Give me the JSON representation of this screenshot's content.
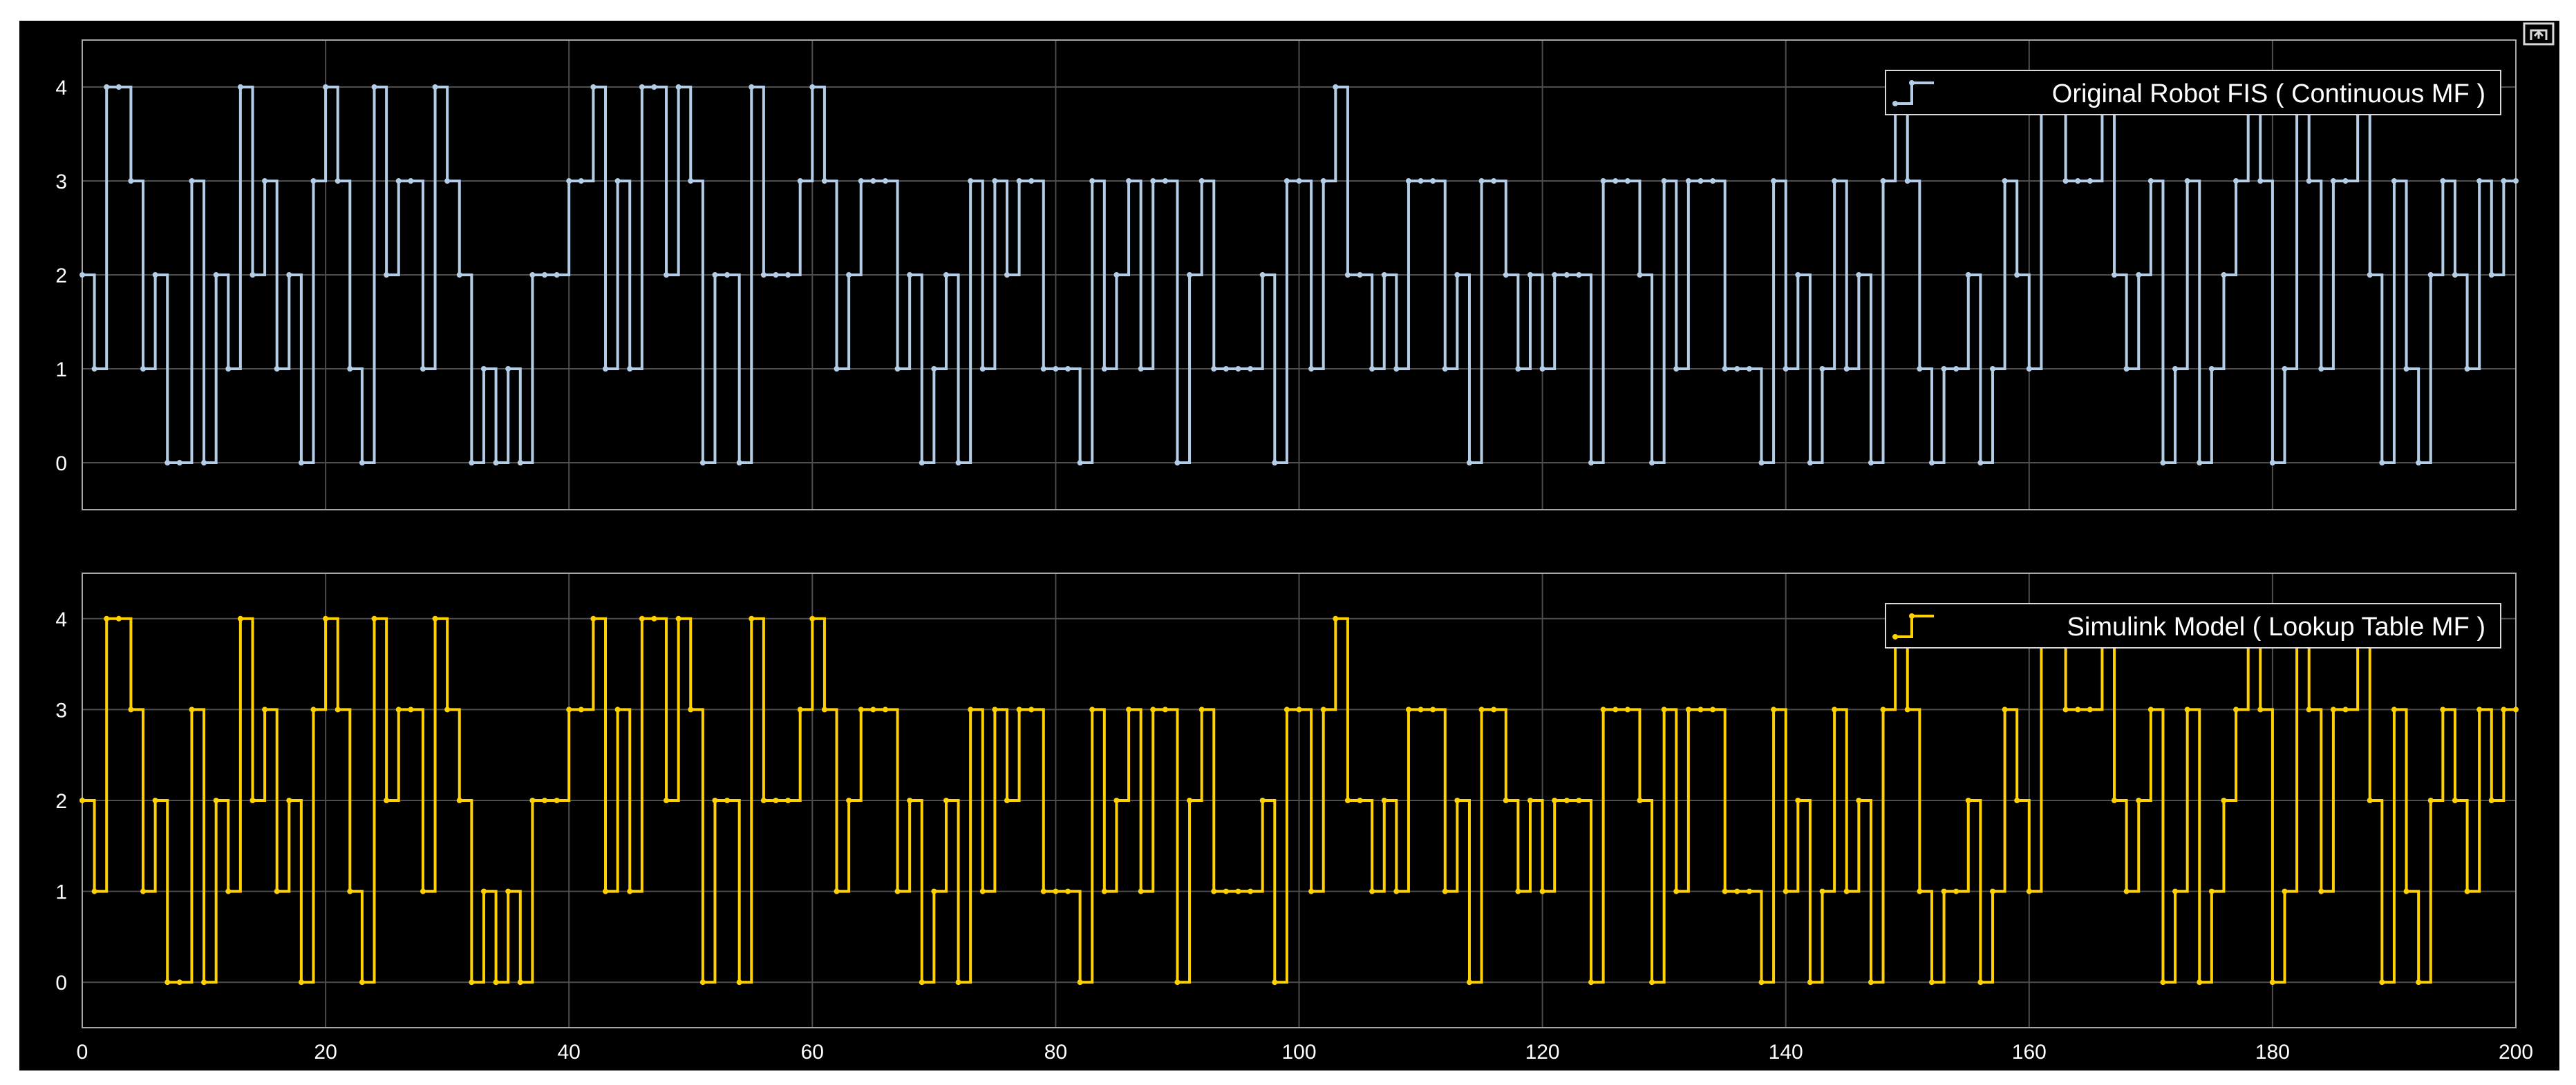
{
  "scope_window": {
    "background": "#000000",
    "axes_border": "#a6a6a6",
    "grid_color": "#4d4d4d",
    "undock_icon": "undock-icon"
  },
  "chart_data": [
    {
      "type": "line",
      "style": "stairs",
      "title": "",
      "xlabel": "",
      "ylabel": "",
      "xlim": [
        0,
        200
      ],
      "ylim": [
        -0.5,
        4.5
      ],
      "grid": true,
      "show_x_ticklabels": false,
      "x_ticks": [
        0,
        20,
        40,
        60,
        80,
        100,
        120,
        140,
        160,
        180,
        200
      ],
      "y_ticks": [
        0,
        1,
        2,
        3,
        4
      ],
      "y_ticklabels": [
        "0",
        "1",
        "2",
        "3",
        "4"
      ],
      "legend_position": "top-right",
      "series": [
        {
          "name": "Original Robot FIS ( Continuous MF )",
          "color": "#b4cde6",
          "x": [
            0,
            1,
            2,
            3,
            4,
            5,
            6,
            7,
            8,
            9,
            10,
            11,
            12,
            13,
            14,
            15,
            16,
            17,
            18,
            19,
            20,
            21,
            22,
            23,
            24,
            25,
            26,
            27,
            28,
            29,
            30,
            31,
            32,
            33,
            34,
            35,
            36,
            37,
            38,
            39,
            40,
            41,
            42,
            43,
            44,
            45,
            46,
            47,
            48,
            49,
            50,
            51,
            52,
            53,
            54,
            55,
            56,
            57,
            58,
            59,
            60,
            61,
            62,
            63,
            64,
            65,
            66,
            67,
            68,
            69,
            70,
            71,
            72,
            73,
            74,
            75,
            76,
            77,
            78,
            79,
            80,
            81,
            82,
            83,
            84,
            85,
            86,
            87,
            88,
            89,
            90,
            91,
            92,
            93,
            94,
            95,
            96,
            97,
            98,
            99,
            100,
            101,
            102,
            103,
            104,
            105,
            106,
            107,
            108,
            109,
            110,
            111,
            112,
            113,
            114,
            115,
            116,
            117,
            118,
            119,
            120,
            121,
            122,
            123,
            124,
            125,
            126,
            127,
            128,
            129,
            130,
            131,
            132,
            133,
            134,
            135,
            136,
            137,
            138,
            139,
            140,
            141,
            142,
            143,
            144,
            145,
            146,
            147,
            148,
            149,
            150,
            151,
            152,
            153,
            154,
            155,
            156,
            157,
            158,
            159,
            160,
            161,
            162,
            163,
            164,
            165,
            166,
            167,
            168,
            169,
            170,
            171,
            172,
            173,
            174,
            175,
            176,
            177,
            178,
            179,
            180,
            181,
            182,
            183,
            184,
            185,
            186,
            187,
            188,
            189,
            190,
            191,
            192,
            193,
            194,
            195,
            196,
            197,
            198,
            199,
            200
          ],
          "y": [
            2,
            1,
            4,
            4,
            3,
            1,
            2,
            0,
            0,
            3,
            0,
            2,
            1,
            4,
            2,
            3,
            1,
            2,
            0,
            3,
            4,
            3,
            1,
            0,
            4,
            2,
            3,
            3,
            1,
            4,
            3,
            2,
            0,
            1,
            0,
            1,
            0,
            2,
            2,
            2,
            3,
            3,
            4,
            1,
            3,
            1,
            4,
            4,
            2,
            4,
            3,
            0,
            2,
            2,
            0,
            4,
            2,
            2,
            2,
            3,
            4,
            3,
            1,
            2,
            3,
            3,
            3,
            1,
            2,
            0,
            1,
            2,
            0,
            3,
            1,
            3,
            2,
            3,
            3,
            1,
            1,
            1,
            0,
            3,
            1,
            2,
            3,
            1,
            3,
            3,
            0,
            2,
            3,
            1,
            1,
            1,
            1,
            2,
            0,
            3,
            3,
            1,
            3,
            4,
            2,
            2,
            1,
            2,
            1,
            3,
            3,
            3,
            1,
            2,
            0,
            3,
            3,
            2,
            1,
            2,
            1,
            2,
            2,
            2,
            0,
            3,
            3,
            3,
            2,
            0,
            3,
            1,
            3,
            3,
            3,
            1,
            1,
            1,
            0,
            3,
            1,
            2,
            0,
            1,
            3,
            1,
            2,
            0,
            3,
            4,
            3,
            1,
            0,
            1,
            1,
            2,
            0,
            1,
            3,
            2,
            1,
            4,
            4,
            3,
            3,
            3,
            4,
            2,
            1,
            2,
            3,
            0,
            1,
            3,
            0,
            1,
            2,
            3,
            4,
            3,
            0,
            1,
            4,
            3,
            1,
            3,
            3,
            4,
            2,
            0,
            3,
            1,
            0,
            2,
            3,
            2,
            1,
            3,
            2,
            3,
            3
          ],
          "markers": true
        }
      ]
    },
    {
      "type": "line",
      "style": "stairs",
      "title": "",
      "xlabel": "",
      "ylabel": "",
      "xlim": [
        0,
        200
      ],
      "ylim": [
        -0.5,
        4.5
      ],
      "grid": true,
      "show_x_ticklabels": true,
      "x_ticks": [
        0,
        20,
        40,
        60,
        80,
        100,
        120,
        140,
        160,
        180,
        200
      ],
      "x_ticklabels": [
        "0",
        "20",
        "40",
        "60",
        "80",
        "100",
        "120",
        "140",
        "160",
        "180",
        "200"
      ],
      "y_ticks": [
        0,
        1,
        2,
        3,
        4
      ],
      "y_ticklabels": [
        "0",
        "1",
        "2",
        "3",
        "4"
      ],
      "legend_position": "top-right",
      "series": [
        {
          "name": "Simulink Model ( Lookup Table MF )",
          "color": "#ffd100",
          "x": [
            0,
            1,
            2,
            3,
            4,
            5,
            6,
            7,
            8,
            9,
            10,
            11,
            12,
            13,
            14,
            15,
            16,
            17,
            18,
            19,
            20,
            21,
            22,
            23,
            24,
            25,
            26,
            27,
            28,
            29,
            30,
            31,
            32,
            33,
            34,
            35,
            36,
            37,
            38,
            39,
            40,
            41,
            42,
            43,
            44,
            45,
            46,
            47,
            48,
            49,
            50,
            51,
            52,
            53,
            54,
            55,
            56,
            57,
            58,
            59,
            60,
            61,
            62,
            63,
            64,
            65,
            66,
            67,
            68,
            69,
            70,
            71,
            72,
            73,
            74,
            75,
            76,
            77,
            78,
            79,
            80,
            81,
            82,
            83,
            84,
            85,
            86,
            87,
            88,
            89,
            90,
            91,
            92,
            93,
            94,
            95,
            96,
            97,
            98,
            99,
            100,
            101,
            102,
            103,
            104,
            105,
            106,
            107,
            108,
            109,
            110,
            111,
            112,
            113,
            114,
            115,
            116,
            117,
            118,
            119,
            120,
            121,
            122,
            123,
            124,
            125,
            126,
            127,
            128,
            129,
            130,
            131,
            132,
            133,
            134,
            135,
            136,
            137,
            138,
            139,
            140,
            141,
            142,
            143,
            144,
            145,
            146,
            147,
            148,
            149,
            150,
            151,
            152,
            153,
            154,
            155,
            156,
            157,
            158,
            159,
            160,
            161,
            162,
            163,
            164,
            165,
            166,
            167,
            168,
            169,
            170,
            171,
            172,
            173,
            174,
            175,
            176,
            177,
            178,
            179,
            180,
            181,
            182,
            183,
            184,
            185,
            186,
            187,
            188,
            189,
            190,
            191,
            192,
            193,
            194,
            195,
            196,
            197,
            198,
            199,
            200
          ],
          "y": [
            2,
            1,
            4,
            4,
            3,
            1,
            2,
            0,
            0,
            3,
            0,
            2,
            1,
            4,
            2,
            3,
            1,
            2,
            0,
            3,
            4,
            3,
            1,
            0,
            4,
            2,
            3,
            3,
            1,
            4,
            3,
            2,
            0,
            1,
            0,
            1,
            0,
            2,
            2,
            2,
            3,
            3,
            4,
            1,
            3,
            1,
            4,
            4,
            2,
            4,
            3,
            0,
            2,
            2,
            0,
            4,
            2,
            2,
            2,
            3,
            4,
            3,
            1,
            2,
            3,
            3,
            3,
            1,
            2,
            0,
            1,
            2,
            0,
            3,
            1,
            3,
            2,
            3,
            3,
            1,
            1,
            1,
            0,
            3,
            1,
            2,
            3,
            1,
            3,
            3,
            0,
            2,
            3,
            1,
            1,
            1,
            1,
            2,
            0,
            3,
            3,
            1,
            3,
            4,
            2,
            2,
            1,
            2,
            1,
            3,
            3,
            3,
            1,
            2,
            0,
            3,
            3,
            2,
            1,
            2,
            1,
            2,
            2,
            2,
            0,
            3,
            3,
            3,
            2,
            0,
            3,
            1,
            3,
            3,
            3,
            1,
            1,
            1,
            0,
            3,
            1,
            2,
            0,
            1,
            3,
            1,
            2,
            0,
            3,
            4,
            3,
            1,
            0,
            1,
            1,
            2,
            0,
            1,
            3,
            2,
            1,
            4,
            4,
            3,
            3,
            3,
            4,
            2,
            1,
            2,
            3,
            0,
            1,
            3,
            0,
            1,
            2,
            3,
            4,
            3,
            0,
            1,
            4,
            3,
            1,
            3,
            3,
            4,
            2,
            0,
            3,
            1,
            0,
            2,
            3,
            2,
            1,
            3,
            2,
            3,
            3
          ],
          "markers": true
        }
      ]
    }
  ]
}
